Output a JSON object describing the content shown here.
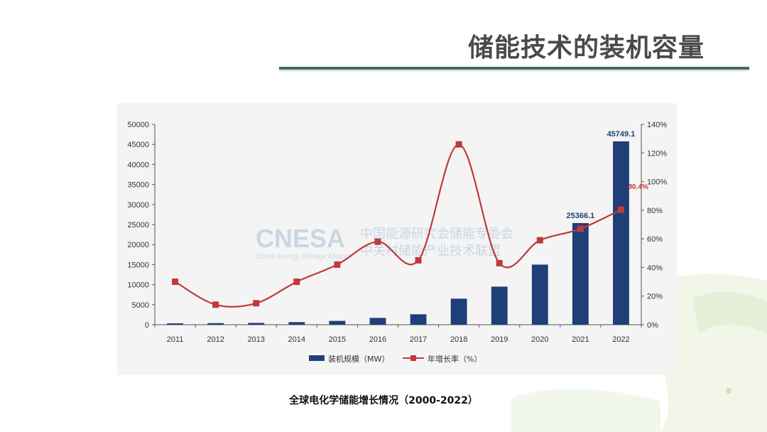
{
  "slide": {
    "title": "储能技术的装机容量",
    "caption": "全球电化学储能增长情况（2000-2022）"
  },
  "watermark": {
    "logo": "CNESA",
    "org_cn_1": "中国能源研究会储能专委会",
    "org_cn_2": "中关村储能产业技术联盟",
    "org_en": "China Energy Storage Alliance"
  },
  "colors": {
    "bar": "#1f3f78",
    "line": "#c0393b",
    "title_rule": "#3f6b55"
  },
  "chart_data": {
    "type": "bar+line",
    "categories": [
      "2011",
      "2012",
      "2013",
      "2014",
      "2015",
      "2016",
      "2017",
      "2018",
      "2019",
      "2020",
      "2021",
      "2022"
    ],
    "series": [
      {
        "name": "装机规模（MW）",
        "type": "bar",
        "axis": "left",
        "values": [
          350,
          400,
          450,
          650,
          950,
          1700,
          2600,
          6500,
          9500,
          15000,
          25366.1,
          45749.1
        ]
      },
      {
        "name": "年增长率（%）",
        "type": "line",
        "axis": "right",
        "values": [
          30,
          14,
          15,
          30,
          42,
          58,
          45,
          126,
          43,
          59,
          67,
          80.4
        ]
      }
    ],
    "data_labels": [
      {
        "category": "2021",
        "series": "装机规模（MW）",
        "text": "25366.1"
      },
      {
        "category": "2022",
        "series": "装机规模（MW）",
        "text": "45749.1"
      },
      {
        "category": "2022",
        "series": "年增长率（%）",
        "text": "80.4%"
      }
    ],
    "y_left": {
      "min": 0,
      "max": 50000,
      "ticks": [
        "0",
        "5000",
        "10000",
        "15000",
        "20000",
        "25000",
        "30000",
        "35000",
        "40000",
        "45000",
        "50000"
      ]
    },
    "y_right": {
      "min": 0,
      "max": 140,
      "ticks": [
        "0%",
        "20%",
        "40%",
        "60%",
        "80%",
        "100%",
        "120%",
        "140%"
      ]
    },
    "legend_position": "bottom",
    "grid": false
  }
}
